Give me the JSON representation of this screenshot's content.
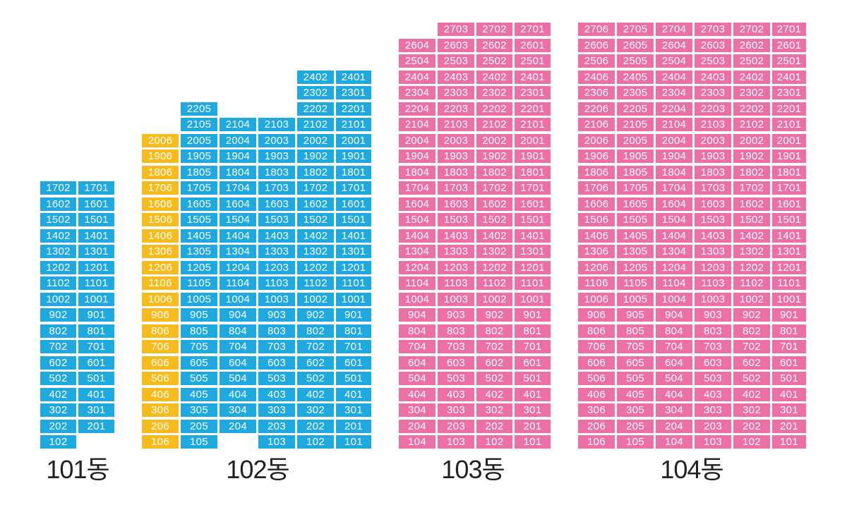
{
  "colors": {
    "blue": "#1fa9e1",
    "yellow": "#f7bb1c",
    "pink": "#ec6fa5",
    "label": "#222222"
  },
  "buildings": [
    {
      "label": "101동",
      "color": "blue",
      "columns": [
        {
          "line": "02",
          "floors": [
            17,
            16,
            15,
            14,
            13,
            12,
            11,
            10,
            9,
            8,
            7,
            6,
            5,
            4,
            3,
            2,
            1
          ]
        },
        {
          "line": "01",
          "floors": [
            17,
            16,
            15,
            14,
            13,
            12,
            11,
            10,
            9,
            8,
            7,
            6,
            5,
            4,
            3,
            2
          ]
        }
      ]
    },
    {
      "label": "102동",
      "color": "blue",
      "columns": [
        {
          "line": "06",
          "color": "yellow",
          "floors": [
            20,
            19,
            18,
            17,
            16,
            15,
            14,
            13,
            12,
            11,
            10,
            9,
            8,
            7,
            6,
            5,
            4,
            3,
            2,
            1
          ]
        },
        {
          "line": "05",
          "floors": [
            22,
            21,
            20,
            19,
            18,
            17,
            16,
            15,
            14,
            13,
            12,
            11,
            10,
            9,
            8,
            7,
            6,
            5,
            4,
            3,
            2,
            1
          ]
        },
        {
          "line": "04",
          "floors": [
            21,
            20,
            19,
            18,
            17,
            16,
            15,
            14,
            13,
            12,
            11,
            10,
            9,
            8,
            7,
            6,
            5,
            4,
            3,
            2
          ]
        },
        {
          "line": "03",
          "floors": [
            21,
            20,
            19,
            18,
            17,
            16,
            15,
            14,
            13,
            12,
            11,
            10,
            9,
            8,
            7,
            6,
            5,
            4,
            3,
            2,
            1
          ]
        },
        {
          "line": "02",
          "floors": [
            24,
            23,
            22,
            21,
            20,
            19,
            18,
            17,
            16,
            15,
            14,
            13,
            12,
            11,
            10,
            9,
            8,
            7,
            6,
            5,
            4,
            3,
            2,
            1
          ]
        },
        {
          "line": "01",
          "floors": [
            24,
            23,
            22,
            21,
            20,
            19,
            18,
            17,
            16,
            15,
            14,
            13,
            12,
            11,
            10,
            9,
            8,
            7,
            6,
            5,
            4,
            3,
            2,
            1
          ]
        }
      ]
    },
    {
      "label": "103동",
      "color": "pink",
      "columns": [
        {
          "line": "04",
          "floors": [
            26,
            25,
            24,
            23,
            22,
            21,
            20,
            19,
            18,
            17,
            16,
            15,
            14,
            13,
            12,
            11,
            10,
            9,
            8,
            7,
            6,
            5,
            4,
            3,
            2,
            1
          ]
        },
        {
          "line": "03",
          "floors": [
            27,
            26,
            25,
            24,
            23,
            22,
            21,
            20,
            19,
            18,
            17,
            16,
            15,
            14,
            13,
            12,
            11,
            10,
            9,
            8,
            7,
            6,
            5,
            4,
            3,
            2,
            1
          ]
        },
        {
          "line": "02",
          "floors": [
            27,
            26,
            25,
            24,
            23,
            22,
            21,
            20,
            19,
            18,
            17,
            16,
            15,
            14,
            13,
            12,
            11,
            10,
            9,
            8,
            7,
            6,
            5,
            4,
            3,
            2,
            1
          ]
        },
        {
          "line": "01",
          "floors": [
            27,
            26,
            25,
            24,
            23,
            22,
            21,
            20,
            19,
            18,
            17,
            16,
            15,
            14,
            13,
            12,
            11,
            10,
            9,
            8,
            7,
            6,
            5,
            4,
            3,
            2,
            1
          ]
        }
      ]
    },
    {
      "label": "104동",
      "color": "pink",
      "columns": [
        {
          "line": "06",
          "floors": [
            27,
            26,
            25,
            24,
            23,
            22,
            21,
            20,
            19,
            18,
            17,
            16,
            15,
            14,
            13,
            12,
            11,
            10,
            9,
            8,
            7,
            6,
            5,
            4,
            3,
            2,
            1
          ]
        },
        {
          "line": "05",
          "floors": [
            27,
            26,
            25,
            24,
            23,
            22,
            21,
            20,
            19,
            18,
            17,
            16,
            15,
            14,
            13,
            12,
            11,
            10,
            9,
            8,
            7,
            6,
            5,
            4,
            3,
            2,
            1
          ]
        },
        {
          "line": "04",
          "floors": [
            27,
            26,
            25,
            24,
            23,
            22,
            21,
            20,
            19,
            18,
            17,
            16,
            15,
            14,
            13,
            12,
            11,
            10,
            9,
            8,
            7,
            6,
            5,
            4,
            3,
            2,
            1
          ]
        },
        {
          "line": "03",
          "floors": [
            27,
            26,
            25,
            24,
            23,
            22,
            21,
            20,
            19,
            18,
            17,
            16,
            15,
            14,
            13,
            12,
            11,
            10,
            9,
            8,
            7,
            6,
            5,
            4,
            3,
            2,
            1
          ]
        },
        {
          "line": "02",
          "floors": [
            27,
            26,
            25,
            24,
            23,
            22,
            21,
            20,
            19,
            18,
            17,
            16,
            15,
            14,
            13,
            12,
            11,
            10,
            9,
            8,
            7,
            6,
            5,
            4,
            3,
            2,
            1
          ]
        },
        {
          "line": "01",
          "floors": [
            27,
            26,
            25,
            24,
            23,
            22,
            21,
            20,
            19,
            18,
            17,
            16,
            15,
            14,
            13,
            12,
            11,
            10,
            9,
            8,
            7,
            6,
            5,
            4,
            3,
            2,
            1
          ]
        }
      ]
    }
  ]
}
